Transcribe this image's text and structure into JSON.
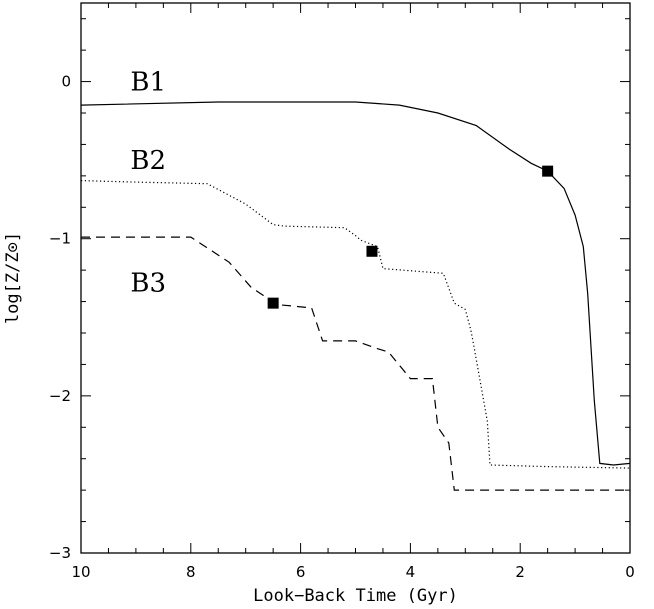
{
  "chart_data": {
    "type": "line",
    "xlabel": "Look−Back Time (Gyr)",
    "ylabel": "log[Z/Z⊙]",
    "xlim": [
      10,
      0
    ],
    "ylim": [
      -3,
      0.5
    ],
    "x_reversed": true,
    "grid": false,
    "x_ticks": [
      10,
      8,
      6,
      4,
      2,
      0
    ],
    "x_tick_labels": [
      "10",
      "8",
      "6",
      "4",
      "2",
      "0"
    ],
    "y_ticks": [
      0,
      -1,
      -2,
      -3
    ],
    "y_tick_labels": [
      "0",
      "−1",
      "−2",
      "−3"
    ],
    "series": [
      {
        "name": "B1",
        "style": "solid",
        "x": [
          10.0,
          7.5,
          5.0,
          4.2,
          3.5,
          2.8,
          2.2,
          1.8,
          1.5,
          1.2,
          1.0,
          0.85,
          0.77,
          0.65,
          0.55,
          0.3,
          0.0
        ],
        "y": [
          -0.15,
          -0.13,
          -0.13,
          -0.15,
          -0.2,
          -0.28,
          -0.43,
          -0.52,
          -0.57,
          -0.68,
          -0.85,
          -1.05,
          -1.35,
          -2.03,
          -2.43,
          -2.44,
          -2.43
        ],
        "marker": {
          "x": 1.5,
          "y": -0.57
        }
      },
      {
        "name": "B2",
        "style": "dotted",
        "x": [
          10.0,
          9.0,
          7.7,
          7.0,
          6.5,
          6.3,
          5.2,
          5.0,
          4.9,
          4.6,
          4.5,
          3.4,
          3.2,
          3.1,
          3.0,
          2.9,
          2.85,
          2.6,
          2.55,
          1.5,
          0.0
        ],
        "y": [
          -0.63,
          -0.64,
          -0.65,
          -0.78,
          -0.91,
          -0.92,
          -0.93,
          -0.98,
          -1.01,
          -1.05,
          -1.19,
          -1.22,
          -1.41,
          -1.43,
          -1.45,
          -1.58,
          -1.67,
          -2.16,
          -2.44,
          -2.45,
          -2.46
        ],
        "marker": {
          "x": 4.7,
          "y": -1.08
        }
      },
      {
        "name": "B3",
        "style": "dashed",
        "x": [
          10.0,
          8.0,
          7.3,
          6.9,
          6.6,
          6.4,
          5.8,
          5.6,
          5.0,
          4.6,
          4.4,
          4.0,
          3.6,
          3.5,
          3.3,
          3.2,
          0.0
        ],
        "y": [
          -0.99,
          -0.99,
          -1.15,
          -1.31,
          -1.38,
          -1.42,
          -1.44,
          -1.65,
          -1.65,
          -1.7,
          -1.72,
          -1.89,
          -1.89,
          -2.2,
          -2.3,
          -2.6,
          -2.6
        ],
        "marker": {
          "x": 6.5,
          "y": -1.41
        }
      }
    ],
    "labels": [
      {
        "text": "B1",
        "x": 9.1,
        "y": 0.0
      },
      {
        "text": "B2",
        "x": 9.1,
        "y": -0.5
      },
      {
        "text": "B3",
        "x": 9.1,
        "y": -1.28
      }
    ]
  }
}
